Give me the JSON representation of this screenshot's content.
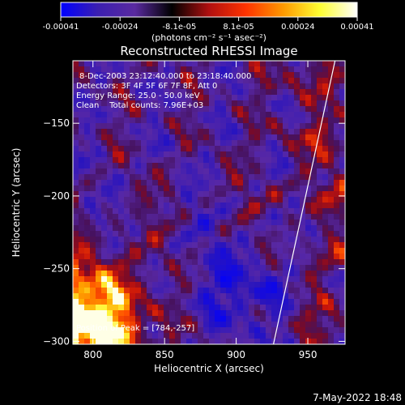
{
  "colorbar": {
    "ticks": [
      "-0.00041",
      "-0.00024",
      "-8.1e-05",
      "8.1e-05",
      "0.00024",
      "0.00041"
    ],
    "unit_label": "(photons cm⁻² s⁻¹ asec⁻²)",
    "range": [
      -0.00041,
      0.00041
    ],
    "colors": [
      "#0000ff",
      "#3b1fb0",
      "#5a2aa0",
      "#000000",
      "#b01010",
      "#ff3300",
      "#ff9900",
      "#ffff33",
      "#ffffff"
    ]
  },
  "chart_data": {
    "type": "heatmap",
    "title": "Reconstructed RHESSI Image",
    "xlabel": "Heliocentric X (arcsec)",
    "ylabel": "Heliocentric Y (arcsec)",
    "xlim": [
      786,
      976
    ],
    "ylim": [
      -302,
      -107
    ],
    "xticks": [
      800,
      850,
      900,
      950
    ],
    "yticks": [
      -150,
      -200,
      -250,
      -300
    ],
    "xtick_labels": [
      "800",
      "850",
      "900",
      "950"
    ],
    "ytick_labels": [
      "−150",
      "−200",
      "−250",
      "−300"
    ],
    "annotations": [
      "8-Dec-2003 23:12:40.000 to 23:18:40.000",
      "Detectors: 3F 4F 5F 6F 7F 8F, Att 0",
      "Energy Range: 25.0 - 50.0 keV",
      "Clean    Total counts: 7.96E+03"
    ],
    "peak_label": "Position of Peak = [784,-257]",
    "peak": [
      784,
      -257
    ],
    "limb_line": [
      [
        926,
        -302
      ],
      [
        969,
        -107
      ]
    ]
  },
  "footer": {
    "timestamp": "7-May-2022 18:48"
  }
}
